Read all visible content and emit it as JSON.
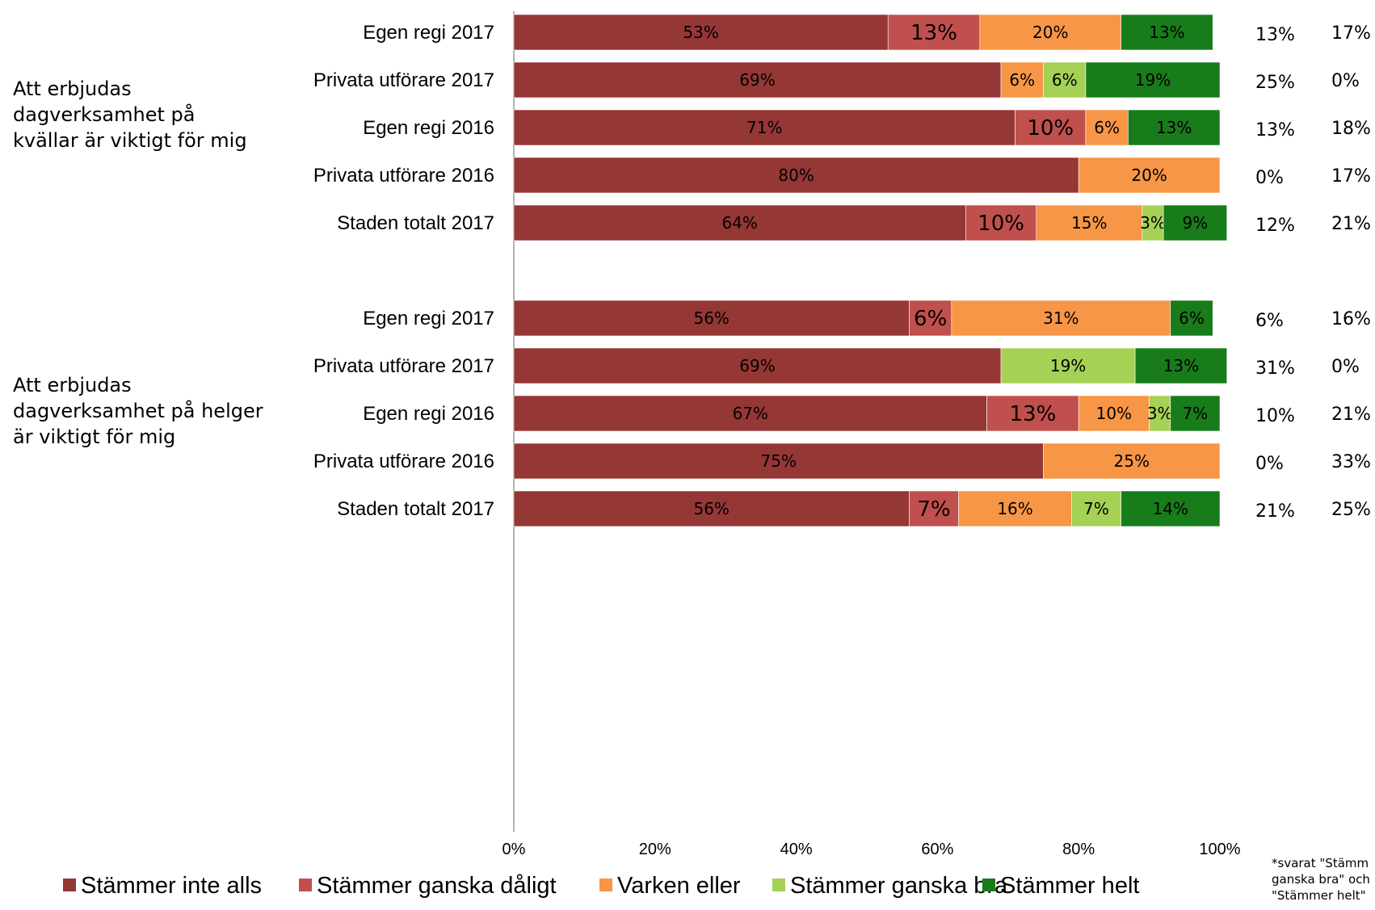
{
  "chart_data": {
    "type": "bar",
    "orientation": "horizontal",
    "stacked": true,
    "xlim": [
      0,
      100
    ],
    "x_ticks": [
      "0%",
      "20%",
      "40%",
      "60%",
      "80%",
      "100%"
    ],
    "grid": false,
    "legend_position": "bottom",
    "series": [
      {
        "name": "Stämmer inte alls",
        "color": "#953735"
      },
      {
        "name": "Stämmer ganska dåligt",
        "color": "#c0504d"
      },
      {
        "name": "Varken eller",
        "color": "#f79646"
      },
      {
        "name": "Stämmer ganska bra",
        "color": "#a5d155"
      },
      {
        "name": "Stämmer helt",
        "color": "#187c1b"
      }
    ],
    "groups": [
      {
        "label": "Att erbjudas dagverksamhet på kvällar är viktigt för mig",
        "label_lines": [
          "Att erbjudas",
          "dagverksamhet på",
          "kvällar är viktigt för mig"
        ],
        "rows": [
          {
            "category": "Egen regi 2017",
            "values": [
              53,
              13,
              20,
              0,
              13
            ],
            "labels": [
              "53%",
              "13%",
              "20%",
              "",
              "13%"
            ],
            "col1": "13%",
            "col2": "17%"
          },
          {
            "category": "Privata utförare 2017",
            "values": [
              69,
              0,
              6,
              6,
              19
            ],
            "labels": [
              "69%",
              "",
              "6%",
              "6%",
              "19%"
            ],
            "col1": "25%",
            "col2": "0%"
          },
          {
            "category": "Egen regi 2016",
            "values": [
              71,
              10,
              6,
              0,
              13
            ],
            "labels": [
              "71%",
              "10%",
              "6%",
              "",
              "13%"
            ],
            "col1": "13%",
            "col2": "18%"
          },
          {
            "category": "Privata utförare 2016",
            "values": [
              80,
              0,
              20,
              0,
              0
            ],
            "labels": [
              "80%",
              "",
              "20%",
              "",
              ""
            ],
            "col1": "0%",
            "col2": "17%"
          },
          {
            "category": "Staden totalt 2017",
            "values": [
              64,
              10,
              15,
              3,
              9
            ],
            "labels": [
              "64%",
              "10%",
              "15%",
              "3%",
              "9%"
            ],
            "col1": "12%",
            "col2": "21%"
          }
        ]
      },
      {
        "label": "Att erbjudas dagverksamhet på helger är viktigt för mig",
        "label_lines": [
          "Att erbjudas",
          "dagverksamhet på helger",
          "är viktigt för mig"
        ],
        "rows": [
          {
            "category": "Egen regi 2017",
            "values": [
              56,
              6,
              31,
              0,
              6
            ],
            "labels": [
              "56%",
              "6%",
              "31%",
              "",
              "6%"
            ],
            "col1": "6%",
            "col2": "16%"
          },
          {
            "category": "Privata utförare 2017",
            "values": [
              69,
              0,
              0,
              19,
              13
            ],
            "labels": [
              "69%",
              "",
              "",
              "19%",
              "13%"
            ],
            "col1": "31%",
            "col2": "0%"
          },
          {
            "category": "Egen regi 2016",
            "values": [
              67,
              13,
              10,
              3,
              7
            ],
            "labels": [
              "67%",
              "13%",
              "10%",
              "3%",
              "7%"
            ],
            "col1": "10%",
            "col2": "21%"
          },
          {
            "category": "Privata utförare 2016",
            "values": [
              75,
              0,
              25,
              0,
              0
            ],
            "labels": [
              "75%",
              "",
              "25%",
              "",
              ""
            ],
            "col1": "0%",
            "col2": "33%"
          },
          {
            "category": "Staden totalt 2017",
            "values": [
              56,
              7,
              16,
              7,
              14
            ],
            "labels": [
              "56%",
              "7%",
              "16%",
              "7%",
              "14%"
            ],
            "col1": "21%",
            "col2": "25%"
          }
        ]
      }
    ],
    "footnote_lines": [
      "*svarat \"Stämm",
      "ganska bra\" och",
      "\"Stämmer helt\""
    ]
  }
}
